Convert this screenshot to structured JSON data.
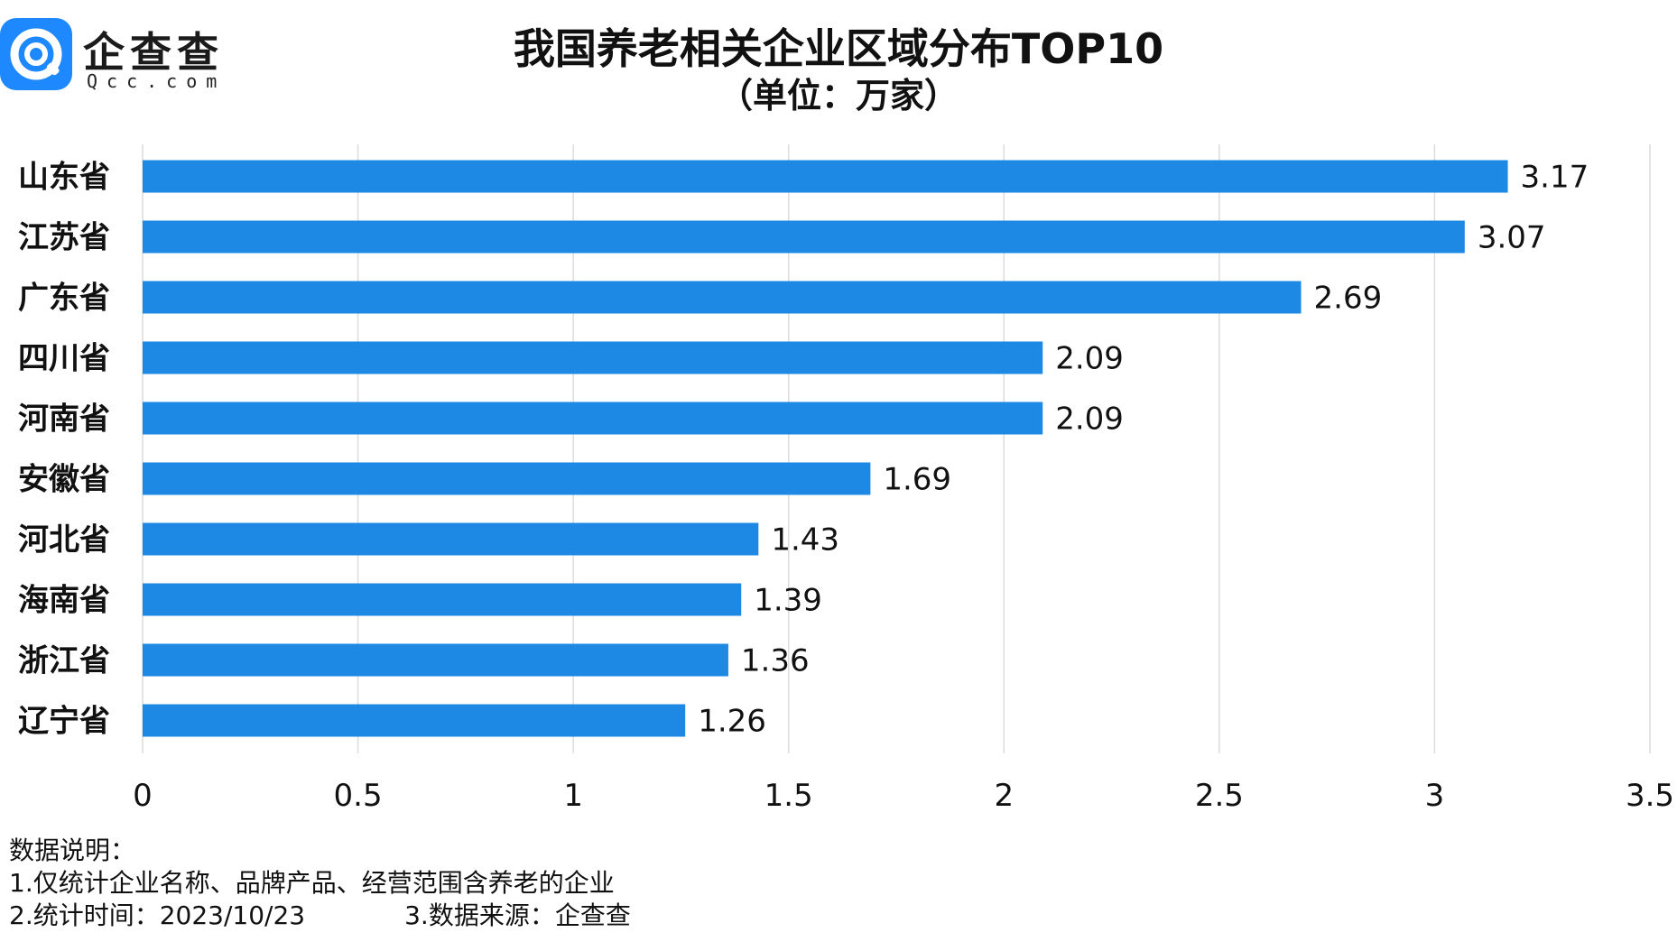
{
  "header": {
    "brand": "企查查",
    "brand_domain": "Qcc.com",
    "title": "我国养老相关企业区域分布TOP10",
    "subtitle": "（单位：万家）"
  },
  "chart_data": {
    "type": "bar",
    "orientation": "horizontal",
    "categories": [
      "山东省",
      "江苏省",
      "广东省",
      "四川省",
      "河南省",
      "安徽省",
      "河北省",
      "海南省",
      "浙江省",
      "辽宁省"
    ],
    "values": [
      3.17,
      3.07,
      2.69,
      2.09,
      2.09,
      1.69,
      1.43,
      1.39,
      1.36,
      1.26
    ],
    "value_labels": [
      "3.17",
      "3.07",
      "2.69",
      "2.09",
      "2.09",
      "1.69",
      "1.43",
      "1.39",
      "1.36",
      "1.26"
    ],
    "xlim": [
      0,
      3.5
    ],
    "xticks": [
      "0",
      "0.5",
      "1",
      "1.5",
      "2",
      "2.5",
      "3",
      "3.5"
    ],
    "grid": "vertical",
    "bar_color": "#1e88e5",
    "grid_color": "#dcdcdc"
  },
  "notes": {
    "heading": "数据说明：",
    "line1": "1.仅统计企业名称、品牌产品、经营范围含养老的企业",
    "line2a": "2.统计时间：2023/10/23",
    "line2b": "3.数据来源：企查查"
  }
}
